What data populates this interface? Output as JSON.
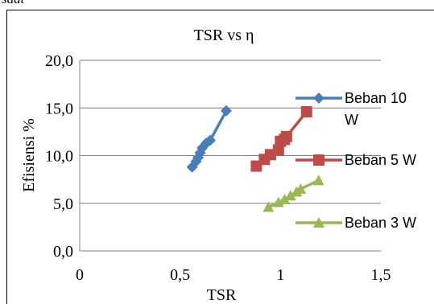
{
  "page": {
    "caption_fragment": "saat"
  },
  "colors": {
    "series": [
      "#4a7ebb",
      "#be4b48",
      "#98b954"
    ],
    "grid": "#7f7f7f",
    "axis": "#868686"
  },
  "chart_data": {
    "type": "scatter",
    "title": "TSR vs η",
    "xlabel": "TSR",
    "ylabel": "Efisiensi %",
    "xlim": [
      0,
      1.5
    ],
    "ylim": [
      0,
      20
    ],
    "x_ticks": [
      "0",
      "0,5",
      "1",
      "1,5"
    ],
    "y_ticks": [
      "0,0",
      "5,0",
      "10,0",
      "15,0",
      "20,0"
    ],
    "grid": "horizontal",
    "legend_position": "right",
    "series": [
      {
        "name": "Beban 10 W",
        "legend_lines": [
          "Beban 10",
          "W"
        ],
        "marker": "diamond",
        "x": [
          0.56,
          0.58,
          0.59,
          0.6,
          0.61,
          0.63,
          0.65,
          0.73
        ],
        "y": [
          8.8,
          9.4,
          9.8,
          10.3,
          10.8,
          11.3,
          11.6,
          14.7
        ]
      },
      {
        "name": "Beban 5 W",
        "legend_lines": [
          "Beban 5 W"
        ],
        "marker": "square",
        "x": [
          0.88,
          0.92,
          0.95,
          0.99,
          1.0,
          1.02,
          1.03,
          1.13
        ],
        "y": [
          8.9,
          9.6,
          10.1,
          10.6,
          11.5,
          11.7,
          12.0,
          14.6
        ]
      },
      {
        "name": "Beban 3 W",
        "legend_lines": [
          "Beban 3 W"
        ],
        "marker": "triangle",
        "x": [
          0.94,
          0.99,
          1.02,
          1.05,
          1.08,
          1.1,
          1.19
        ],
        "y": [
          4.6,
          5.1,
          5.4,
          5.8,
          6.2,
          6.5,
          7.4
        ]
      }
    ]
  }
}
